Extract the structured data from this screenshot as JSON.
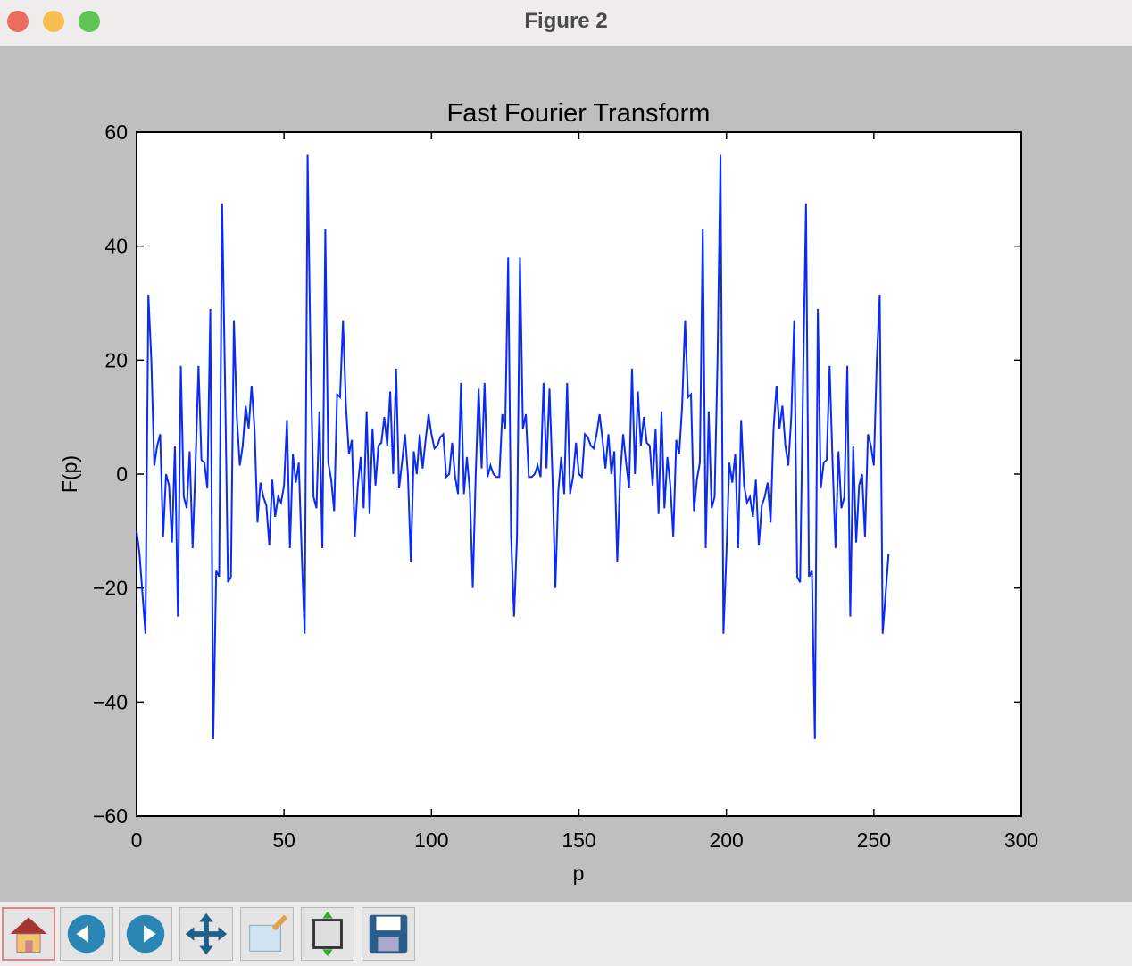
{
  "window": {
    "title": "Figure 2"
  },
  "chart_data": {
    "type": "line",
    "title": "Fast Fourier Transform",
    "x_label": "p",
    "y_label": "F(p)",
    "color": "#0a2bf5",
    "grid": false,
    "xlim": [
      0,
      300
    ],
    "xticks": [
      0,
      50,
      100,
      150,
      200,
      250,
      300
    ],
    "ylim": [
      -60,
      60
    ],
    "yticks": [
      {
        "value": -60,
        "label": "−60"
      },
      {
        "value": -40,
        "label": "−40"
      },
      {
        "value": -20,
        "label": "−20"
      },
      0,
      20,
      40,
      60
    ],
    "x": [
      0,
      1,
      2,
      3,
      4,
      5,
      6,
      7,
      8,
      9,
      10,
      11,
      12,
      13,
      14,
      15,
      16,
      17,
      18,
      19,
      20,
      21,
      22,
      23,
      24,
      25,
      26,
      27,
      28,
      29,
      30,
      31,
      32,
      33,
      34,
      35,
      36,
      37,
      38,
      39,
      40,
      41,
      42,
      43,
      44,
      45,
      46,
      47,
      48,
      49,
      50,
      51,
      52,
      53,
      54,
      55,
      56,
      57,
      58,
      59,
      60,
      61,
      62,
      63,
      64,
      65,
      66,
      67,
      68,
      69,
      70,
      71,
      72,
      73,
      74,
      75,
      76,
      77,
      78,
      79,
      80,
      81,
      82,
      83,
      84,
      85,
      86,
      87,
      88,
      89,
      90,
      91,
      92,
      93,
      94,
      95,
      96,
      97,
      98,
      99,
      100,
      101,
      102,
      103,
      104,
      105,
      106,
      107,
      108,
      109,
      110,
      111,
      112,
      113,
      114,
      115,
      116,
      117,
      118,
      119,
      120,
      121,
      122,
      123,
      124,
      125,
      126,
      127,
      128,
      129,
      130,
      131,
      132,
      133,
      134,
      135,
      136,
      137,
      138,
      139,
      140,
      141,
      142,
      143,
      144,
      145,
      146,
      147,
      148,
      149,
      150,
      151,
      152,
      153,
      154,
      155,
      156,
      157,
      158,
      159,
      160,
      161,
      162,
      163,
      164,
      165,
      166,
      167,
      168,
      169,
      170,
      171,
      172,
      173,
      174,
      175,
      176,
      177,
      178,
      179,
      180,
      181,
      182,
      183,
      184,
      185,
      186,
      187,
      188,
      189,
      190,
      191,
      192,
      193,
      194,
      195,
      196,
      197,
      198,
      199,
      200,
      201,
      202,
      203,
      204,
      205,
      206,
      207,
      208,
      209,
      210,
      211,
      212,
      213,
      214,
      215,
      216,
      217,
      218,
      219,
      220,
      221,
      222,
      223,
      224,
      225,
      226,
      227,
      228,
      229,
      230,
      231,
      232,
      233,
      234,
      235,
      236,
      237,
      238,
      239,
      240,
      241,
      242,
      243,
      244,
      245,
      246,
      247,
      248,
      249,
      250,
      251,
      252,
      253,
      254,
      255
    ],
    "values": [
      -10,
      -14,
      -21,
      -28,
      31.5,
      20,
      1.5,
      5,
      7,
      -11,
      0,
      -2,
      -12,
      5,
      -25,
      19,
      -4,
      -6,
      4,
      -13,
      2,
      19,
      2.5,
      2,
      -2.5,
      29,
      -46.5,
      -17,
      -18,
      47.5,
      16,
      -19,
      -18,
      27,
      10,
      1.5,
      5,
      12,
      8,
      15.5,
      8,
      -8.5,
      -1.5,
      -4,
      -5.5,
      -12.5,
      -1,
      -7.5,
      -4,
      -5,
      -2,
      9.5,
      -13,
      3.5,
      -1.5,
      2,
      -14,
      -28,
      56,
      20,
      -4,
      -6,
      11,
      -13,
      43,
      2,
      -1,
      -6.5,
      14,
      13.5,
      27,
      12,
      3.5,
      6,
      -11,
      -2,
      3,
      -6,
      11,
      -7,
      8,
      -2,
      5,
      5.5,
      10,
      5,
      14.5,
      0,
      18.5,
      -2.5,
      2,
      7,
      0,
      -15.5,
      4,
      0,
      7,
      1,
      6,
      10.5,
      7,
      4.5,
      5,
      6.5,
      7,
      -0.5,
      0,
      5.5,
      -0.5,
      -3.5,
      16,
      -3.5,
      3,
      -3,
      -20,
      0,
      15,
      1,
      16,
      -0.5,
      1.5,
      0,
      -0.5,
      -0.5,
      10.5,
      8,
      38,
      -11,
      -25,
      -11,
      38,
      8,
      10.5,
      -0.5,
      -0.5,
      0,
      1.5,
      -0.5,
      16,
      1,
      15,
      0,
      -20,
      -3,
      3,
      -3.5,
      16,
      -3.5,
      -0.5,
      5.5,
      0,
      -0.5,
      7,
      6.5,
      5,
      4.5,
      7,
      10.5,
      6,
      1,
      7,
      0,
      4,
      -15.5,
      0,
      7,
      2,
      -2.5,
      18.5,
      0,
      14.5,
      5,
      10,
      5.5,
      5,
      -2,
      8,
      -7,
      11,
      -6,
      3,
      -2,
      -11,
      6,
      3.5,
      12,
      27,
      13.5,
      14,
      -6.5,
      -1,
      2,
      43,
      -13,
      11,
      -6,
      -4,
      20,
      56,
      -28,
      -14,
      2,
      -1.5,
      3.5,
      -13,
      9.5,
      -2,
      -5,
      -4,
      -7.5,
      -1,
      -12.5,
      -5.5,
      -4,
      -1.5,
      -8.5,
      8,
      15.5,
      8,
      12,
      5,
      1.5,
      10,
      27,
      -18,
      -19,
      16,
      47.5,
      -18,
      -17,
      -46.5,
      29,
      -2.5,
      2,
      2.5,
      19,
      2,
      -13,
      4,
      -6,
      -4,
      19,
      -25,
      5,
      -12,
      -2,
      0,
      -11,
      7,
      5,
      1.5,
      20,
      31.5,
      -28,
      -21,
      -14
    ]
  }
}
